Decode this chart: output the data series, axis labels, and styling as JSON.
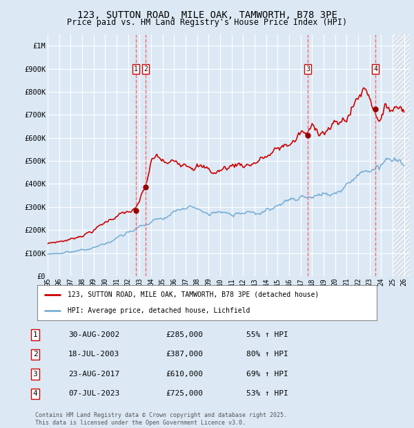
{
  "title_line1": "123, SUTTON ROAD, MILE OAK, TAMWORTH, B78 3PE",
  "title_line2": "Price paid vs. HM Land Registry's House Price Index (HPI)",
  "background_color": "#dce9f5",
  "ylabel_ticks": [
    "£0",
    "£100K",
    "£200K",
    "£300K",
    "£400K",
    "£500K",
    "£600K",
    "£700K",
    "£800K",
    "£900K",
    "£1M"
  ],
  "ytick_values": [
    0,
    100000,
    200000,
    300000,
    400000,
    500000,
    600000,
    700000,
    800000,
    900000,
    1000000
  ],
  "ylim": [
    0,
    1050000
  ],
  "xlim_start": 1995.0,
  "xlim_end": 2026.5,
  "xtick_years": [
    1995,
    1996,
    1997,
    1998,
    1999,
    2000,
    2001,
    2002,
    2003,
    2004,
    2005,
    2006,
    2007,
    2008,
    2009,
    2010,
    2011,
    2012,
    2013,
    2014,
    2015,
    2016,
    2017,
    2018,
    2019,
    2020,
    2021,
    2022,
    2023,
    2024,
    2025,
    2026
  ],
  "red_line_label": "123, SUTTON ROAD, MILE OAK, TAMWORTH, B78 3PE (detached house)",
  "blue_line_label": "HPI: Average price, detached house, Lichfield",
  "sale_points": [
    {
      "label": "1",
      "date_num": 2002.66,
      "price": 285000,
      "text": "30-AUG-2002",
      "price_str": "£285,000",
      "pct": "55% ↑ HPI"
    },
    {
      "label": "2",
      "date_num": 2003.54,
      "price": 387000,
      "text": "18-JUL-2003",
      "price_str": "£387,000",
      "pct": "80% ↑ HPI"
    },
    {
      "label": "3",
      "date_num": 2017.64,
      "price": 610000,
      "text": "23-AUG-2017",
      "price_str": "£610,000",
      "pct": "69% ↑ HPI"
    },
    {
      "label": "4",
      "date_num": 2023.52,
      "price": 725000,
      "text": "07-JUL-2023",
      "price_str": "£725,000",
      "pct": "53% ↑ HPI"
    }
  ],
  "red_color": "#cc0000",
  "blue_color": "#7bafd4",
  "dashed_color": "#ff6666",
  "footer_text": "Contains HM Land Registry data © Crown copyright and database right 2025.\nThis data is licensed under the Open Government Licence v3.0.",
  "hatch_start": 2025.0,
  "table_rows": [
    [
      "1",
      "30-AUG-2002",
      "£285,000",
      "55% ↑ HPI"
    ],
    [
      "2",
      "18-JUL-2003",
      "£387,000",
      "80% ↑ HPI"
    ],
    [
      "3",
      "23-AUG-2017",
      "£610,000",
      "69% ↑ HPI"
    ],
    [
      "4",
      "07-JUL-2023",
      "£725,000",
      "53% ↑ HPI"
    ]
  ]
}
